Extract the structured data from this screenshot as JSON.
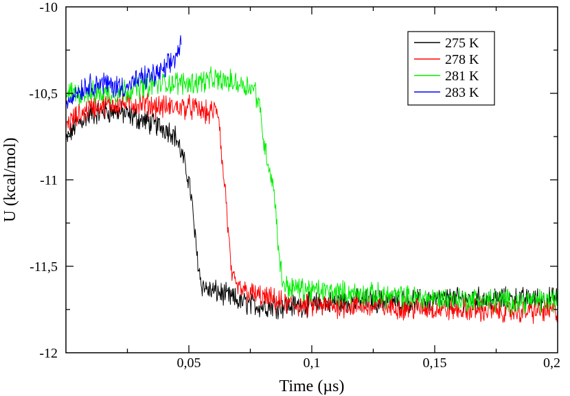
{
  "chart_data": {
    "type": "line",
    "title": "",
    "xlabel": "Time (µs)",
    "ylabel": "U (kcal/mol)",
    "xlim": [
      0,
      0.2
    ],
    "ylim": [
      -12,
      -10
    ],
    "grid": false,
    "legend_position": "top-right",
    "x_ticks": [
      {
        "value": 0.05,
        "label": "0,05"
      },
      {
        "value": 0.1,
        "label": "0,1"
      },
      {
        "value": 0.15,
        "label": "0,15"
      },
      {
        "value": 0.2,
        "label": "0,2"
      }
    ],
    "y_ticks": [
      {
        "value": -10,
        "label": "-10"
      },
      {
        "value": -10.5,
        "label": "-10,5"
      },
      {
        "value": -11,
        "label": "-11"
      },
      {
        "value": -11.5,
        "label": "-11,5"
      },
      {
        "value": -12,
        "label": "-12"
      }
    ],
    "series": [
      {
        "name": "275 K",
        "color": "#000000",
        "points": [
          [
            0,
            -10.78
          ],
          [
            0.004,
            -10.68
          ],
          [
            0.01,
            -10.62
          ],
          [
            0.02,
            -10.6
          ],
          [
            0.03,
            -10.65
          ],
          [
            0.04,
            -10.7
          ],
          [
            0.043,
            -10.72
          ],
          [
            0.045,
            -10.76
          ],
          [
            0.047,
            -10.85
          ],
          [
            0.048,
            -10.9
          ],
          [
            0.05,
            -11.0
          ],
          [
            0.051,
            -11.1
          ],
          [
            0.052,
            -11.25
          ],
          [
            0.053,
            -11.4
          ],
          [
            0.054,
            -11.5
          ],
          [
            0.055,
            -11.6
          ],
          [
            0.058,
            -11.64
          ],
          [
            0.062,
            -11.65
          ],
          [
            0.07,
            -11.7
          ],
          [
            0.075,
            -11.72
          ],
          [
            0.08,
            -11.73
          ],
          [
            0.09,
            -11.73
          ],
          [
            0.1,
            -11.72
          ],
          [
            0.12,
            -11.7
          ],
          [
            0.14,
            -11.7
          ],
          [
            0.16,
            -11.69
          ],
          [
            0.18,
            -11.69
          ],
          [
            0.2,
            -11.69
          ]
        ]
      },
      {
        "name": "278 K",
        "color": "#ff0000",
        "points": [
          [
            0,
            -10.68
          ],
          [
            0.01,
            -10.58
          ],
          [
            0.02,
            -10.56
          ],
          [
            0.03,
            -10.56
          ],
          [
            0.04,
            -10.58
          ],
          [
            0.05,
            -10.58
          ],
          [
            0.055,
            -10.6
          ],
          [
            0.058,
            -10.62
          ],
          [
            0.06,
            -10.6
          ],
          [
            0.0615,
            -10.6
          ],
          [
            0.062,
            -10.62
          ],
          [
            0.0625,
            -10.67
          ],
          [
            0.063,
            -10.8
          ],
          [
            0.0635,
            -10.9
          ],
          [
            0.064,
            -10.97
          ],
          [
            0.065,
            -11.08
          ],
          [
            0.066,
            -11.3
          ],
          [
            0.067,
            -11.5
          ],
          [
            0.068,
            -11.58
          ],
          [
            0.069,
            -11.62
          ],
          [
            0.072,
            -11.64
          ],
          [
            0.08,
            -11.68
          ],
          [
            0.09,
            -11.72
          ],
          [
            0.1,
            -11.73
          ],
          [
            0.12,
            -11.73
          ],
          [
            0.14,
            -11.74
          ],
          [
            0.16,
            -11.75
          ],
          [
            0.18,
            -11.76
          ],
          [
            0.2,
            -11.76
          ]
        ]
      },
      {
        "name": "281 K",
        "color": "#00ee00",
        "points": [
          [
            0,
            -10.5
          ],
          [
            0.01,
            -10.5
          ],
          [
            0.02,
            -10.5
          ],
          [
            0.03,
            -10.46
          ],
          [
            0.04,
            -10.44
          ],
          [
            0.05,
            -10.44
          ],
          [
            0.06,
            -10.42
          ],
          [
            0.07,
            -10.44
          ],
          [
            0.075,
            -10.46
          ],
          [
            0.077,
            -10.48
          ],
          [
            0.079,
            -10.6
          ],
          [
            0.08,
            -10.72
          ],
          [
            0.081,
            -10.82
          ],
          [
            0.082,
            -10.88
          ],
          [
            0.083,
            -10.95
          ],
          [
            0.084,
            -11.0
          ],
          [
            0.085,
            -11.12
          ],
          [
            0.086,
            -11.3
          ],
          [
            0.087,
            -11.48
          ],
          [
            0.088,
            -11.58
          ],
          [
            0.09,
            -11.62
          ],
          [
            0.1,
            -11.64
          ],
          [
            0.12,
            -11.66
          ],
          [
            0.14,
            -11.68
          ],
          [
            0.16,
            -11.69
          ],
          [
            0.18,
            -11.7
          ],
          [
            0.2,
            -11.7
          ]
        ]
      },
      {
        "name": "283 K",
        "color": "#0000ff",
        "points": [
          [
            0,
            -10.55
          ],
          [
            0.005,
            -10.48
          ],
          [
            0.01,
            -10.45
          ],
          [
            0.015,
            -10.44
          ],
          [
            0.02,
            -10.46
          ],
          [
            0.025,
            -10.46
          ],
          [
            0.03,
            -10.42
          ],
          [
            0.035,
            -10.4
          ],
          [
            0.04,
            -10.37
          ],
          [
            0.044,
            -10.3
          ],
          [
            0.046,
            -10.25
          ],
          [
            0.047,
            -10.18
          ]
        ]
      }
    ]
  }
}
